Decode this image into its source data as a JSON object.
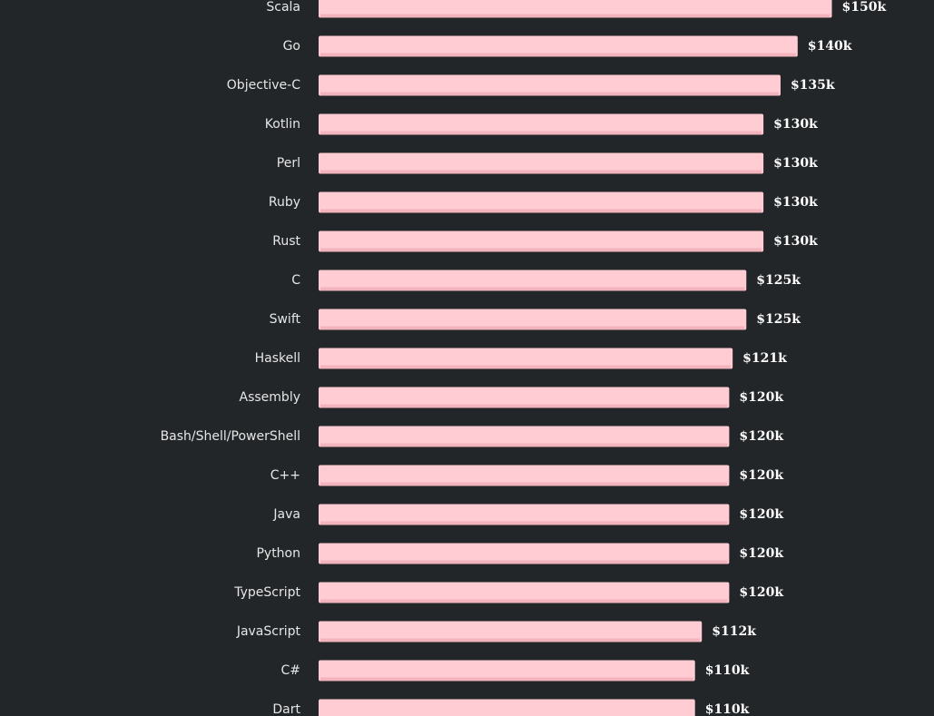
{
  "colors": {
    "background": "#232629",
    "bar_fill": "#ffccd3",
    "bar_shade": "#f2b3bd",
    "label_text": "#e6e6e6",
    "value_text": "#ffffff"
  },
  "chart_data": {
    "type": "bar",
    "orientation": "horizontal",
    "grid": false,
    "title": "",
    "xlabel": "",
    "ylabel": "",
    "xlim": [
      0,
      162
    ],
    "value_prefix": "$",
    "value_suffix": "k",
    "categories": [
      "Scala",
      "Go",
      "Objective-C",
      "Kotlin",
      "Perl",
      "Ruby",
      "Rust",
      "C",
      "Swift",
      "Haskell",
      "Assembly",
      "Bash/Shell/PowerShell",
      "C++",
      "Java",
      "Python",
      "TypeScript",
      "JavaScript",
      "C#",
      "Dart"
    ],
    "values": [
      150,
      140,
      135,
      130,
      130,
      130,
      130,
      125,
      125,
      121,
      120,
      120,
      120,
      120,
      120,
      120,
      112,
      110,
      110
    ],
    "value_labels": [
      "$150k",
      "$140k",
      "$135k",
      "$130k",
      "$130k",
      "$130k",
      "$130k",
      "$125k",
      "$125k",
      "$121k",
      "$120k",
      "$120k",
      "$120k",
      "$120k",
      "$120k",
      "$120k",
      "$112k",
      "$110k",
      "$110k"
    ]
  }
}
